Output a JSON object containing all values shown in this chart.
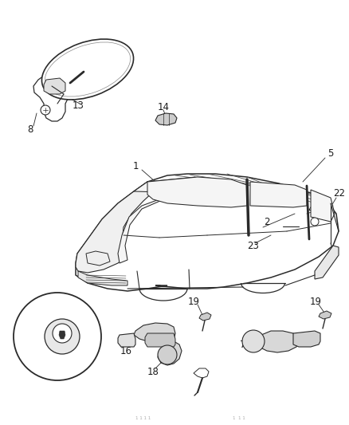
{
  "bg_color": "#ffffff",
  "line_color": "#2a2a2a",
  "label_color": "#1a1a1a",
  "label_fontsize": 8.5,
  "fig_width": 4.38,
  "fig_height": 5.33,
  "dpi": 100
}
